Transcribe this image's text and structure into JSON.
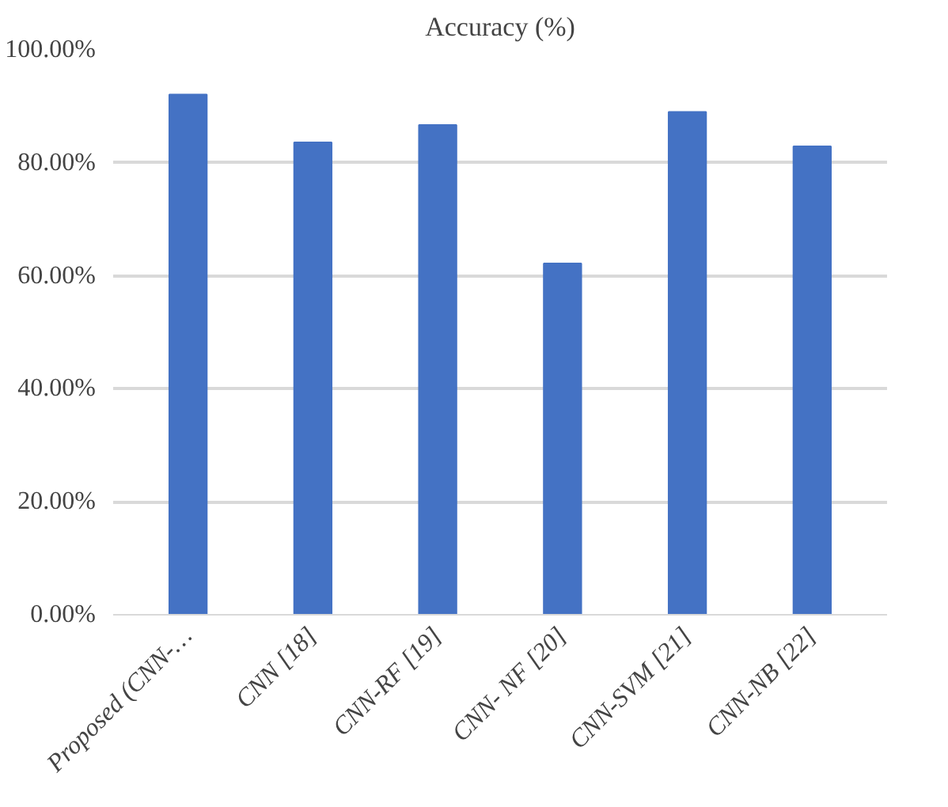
{
  "chart_data": {
    "type": "bar",
    "title": "Accuracy (%)",
    "categories": [
      "Proposed (CNN-…",
      "CNN [18]",
      "CNN-RF [19]",
      "CNN- NF [20]",
      "CNN-SVM [21]",
      "CNN-NB [22]"
    ],
    "values": [
      92.1,
      83.6,
      86.7,
      62.2,
      89.0,
      82.9
    ],
    "color": "#4472c4",
    "ylim": [
      0,
      100
    ],
    "yticks": [
      {
        "value": 0,
        "label": "0.00%"
      },
      {
        "value": 20,
        "label": "20.00%"
      },
      {
        "value": 40,
        "label": "40.00%"
      },
      {
        "value": 60,
        "label": "60.00%"
      },
      {
        "value": 80,
        "label": "80.00%"
      },
      {
        "value": 100,
        "label": "100.00%"
      }
    ],
    "grid": "y"
  }
}
